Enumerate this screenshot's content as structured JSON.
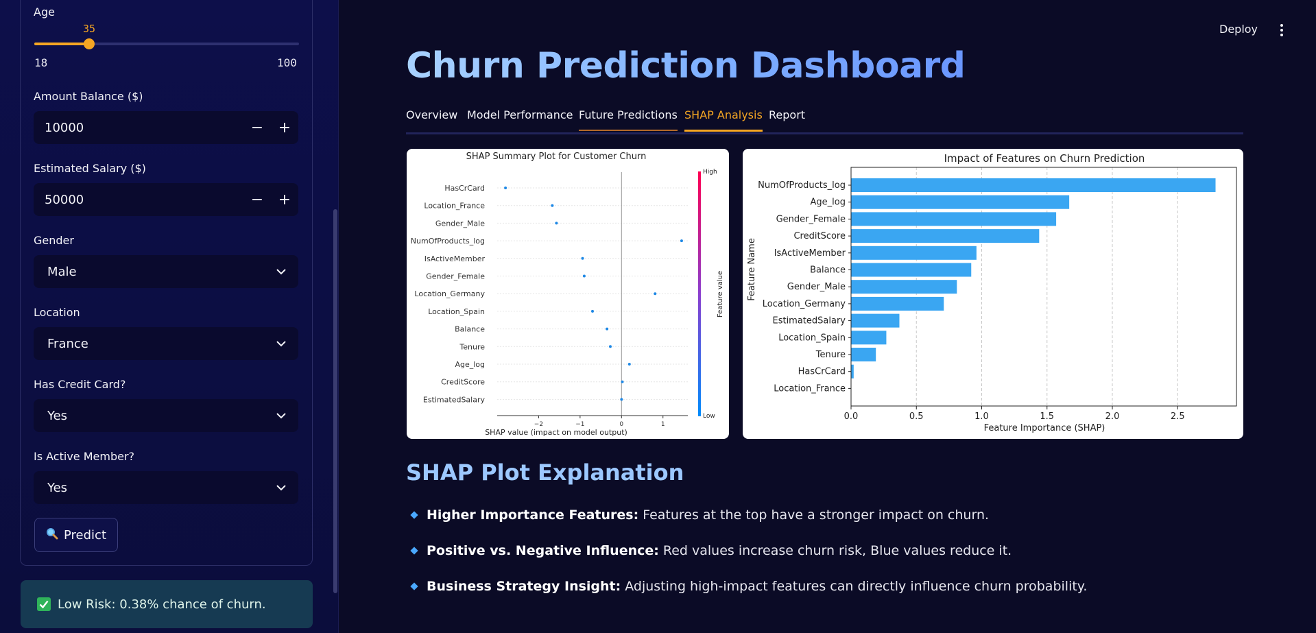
{
  "sidebar": {
    "age": {
      "label": "Age",
      "value": "35",
      "min": "18",
      "max": "100",
      "fraction": 0.2073
    },
    "balance": {
      "label": "Amount Balance ($)",
      "value": "10000",
      "minus": "−",
      "plus": "+"
    },
    "salary": {
      "label": "Estimated Salary ($)",
      "value": "50000",
      "minus": "−",
      "plus": "+"
    },
    "gender": {
      "label": "Gender",
      "value": "Male"
    },
    "location": {
      "label": "Location",
      "value": "France"
    },
    "credit_card": {
      "label": "Has Credit Card?",
      "value": "Yes"
    },
    "active_member": {
      "label": "Is Active Member?",
      "value": "Yes"
    },
    "predict_button": {
      "icon": "magnifier-icon",
      "label": "Predict"
    },
    "result": {
      "icon": "check-icon",
      "text": "Low Risk: 0.38% chance of churn."
    }
  },
  "header": {
    "deploy_label": "Deploy",
    "menu_icon": "kebab-menu-icon"
  },
  "main": {
    "title": "Churn Prediction Dashboard",
    "tabs": [
      {
        "label": "Overview"
      },
      {
        "label": "Model Performance"
      },
      {
        "label": "Future Predictions"
      },
      {
        "label": "SHAP Analysis"
      },
      {
        "label": "Report"
      }
    ],
    "active_tab": "SHAP Analysis",
    "explanation": {
      "title": "SHAP Plot Explanation",
      "bullets": [
        {
          "bold": "Higher Importance Features:",
          "text": "Features at the top have a stronger impact on churn."
        },
        {
          "bold": "Positive vs. Negative Influence:",
          "text": "Red values increase churn risk, Blue values reduce it."
        },
        {
          "bold": "Business Strategy Insight:",
          "text": "Adjusting high-impact features can directly influence churn probability."
        }
      ]
    }
  },
  "colors": {
    "accent": "#f5a623",
    "point": "#1e88e5",
    "bar": "#3aa6f2"
  },
  "chart_data": [
    {
      "type": "scatter",
      "title": "SHAP Summary Plot for Customer Churn",
      "xlabel": "SHAP value (impact on model output)",
      "ylabel": "",
      "xlim": [
        -3,
        1.6
      ],
      "xticks": [
        "−2",
        "−1",
        "0",
        "1"
      ],
      "xtick_values": [
        -2,
        -1,
        0,
        1
      ],
      "colorbar": {
        "label": "Feature value",
        "high": "High",
        "low": "Low"
      },
      "categories": [
        "HasCrCard",
        "Location_France",
        "Gender_Male",
        "NumOfProducts_log",
        "IsActiveMember",
        "Gender_Female",
        "Location_Germany",
        "Location_Spain",
        "Balance",
        "Tenure",
        "Age_log",
        "CreditScore",
        "EstimatedSalary"
      ],
      "values": [
        -2.8,
        -1.67,
        -1.57,
        1.45,
        -0.94,
        -0.9,
        0.81,
        -0.7,
        -0.35,
        -0.27,
        0.19,
        0.02,
        0.0
      ]
    },
    {
      "type": "bar",
      "orientation": "horizontal",
      "title": "Impact of Features on Churn Prediction",
      "xlabel": "Feature Importance (SHAP)",
      "ylabel": "Feature Name",
      "xlim": [
        0,
        2.95
      ],
      "xticks": [
        "0.0",
        "0.5",
        "1.0",
        "1.5",
        "2.0",
        "2.5"
      ],
      "xtick_values": [
        0,
        0.5,
        1.0,
        1.5,
        2.0,
        2.5
      ],
      "grid": true,
      "categories": [
        "NumOfProducts_log",
        "Age_log",
        "Gender_Female",
        "CreditScore",
        "IsActiveMember",
        "Balance",
        "Gender_Male",
        "Location_Germany",
        "EstimatedSalary",
        "Location_Spain",
        "Tenure",
        "HasCrCard",
        "Location_France"
      ],
      "values": [
        2.79,
        1.67,
        1.57,
        1.44,
        0.96,
        0.92,
        0.81,
        0.71,
        0.37,
        0.27,
        0.19,
        0.02,
        0.0
      ]
    }
  ]
}
